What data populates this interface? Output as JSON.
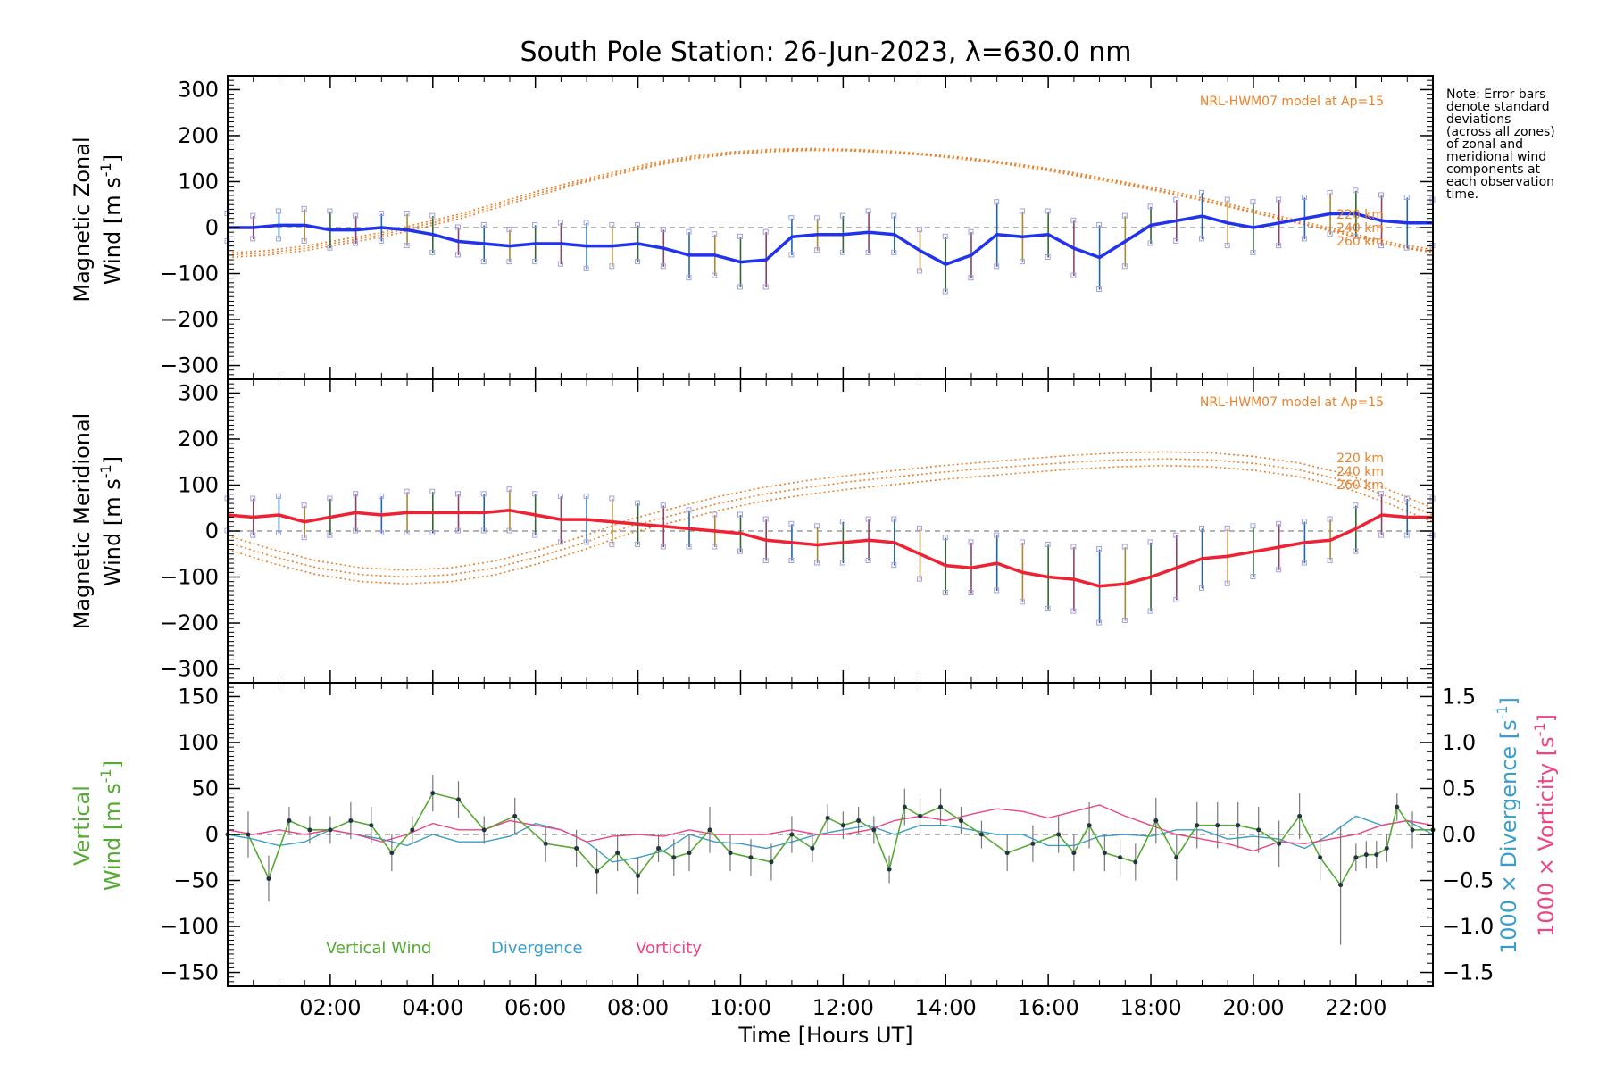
{
  "colors": {
    "zonal": "#2233ee",
    "meridional": "#ee2233",
    "model": "#e8822a",
    "vertical": "#55aa33",
    "divergence": "#3a9ec8",
    "vorticity": "#ee4488",
    "grid": "#888888"
  },
  "chart_data": [
    {
      "id": "zonal",
      "type": "line",
      "title": "South Pole Station: 26-Jun-2023, λ=630.0 nm",
      "ylabel_line1": "Magnetic Zonal",
      "ylabel_line2": "Wind [m s",
      "ylabel_sup": "-1",
      "ylabel_close": "]",
      "ylim": [
        -330,
        330
      ],
      "yticks": [
        300,
        200,
        100,
        0,
        -100,
        -200,
        -300
      ],
      "ytick_labels": [
        "300",
        "200",
        "100",
        "0",
        "−100",
        "−200",
        "−300"
      ],
      "xlim": [
        0.0,
        23.5
      ],
      "model_label": "NRL-HWM07 model at Ap=15",
      "model_altitudes": [
        "220 km",
        "240 km",
        "260 km"
      ],
      "x": [
        0.0,
        0.5,
        1.0,
        1.5,
        2.0,
        2.5,
        3.0,
        3.5,
        4.0,
        4.5,
        5.0,
        5.5,
        6.0,
        6.5,
        7.0,
        7.5,
        8.0,
        8.5,
        9.0,
        9.5,
        10.0,
        10.5,
        11.0,
        11.5,
        12.0,
        12.5,
        13.0,
        13.5,
        14.0,
        14.5,
        15.0,
        15.5,
        16.0,
        16.5,
        17.0,
        17.5,
        18.0,
        18.5,
        19.0,
        19.5,
        20.0,
        20.5,
        21.0,
        21.5,
        22.0,
        22.5,
        23.0,
        23.5
      ],
      "values": [
        0,
        0,
        5,
        5,
        -5,
        -5,
        0,
        -5,
        -15,
        -30,
        -35,
        -40,
        -35,
        -35,
        -40,
        -40,
        -35,
        -45,
        -60,
        -60,
        -75,
        -70,
        -20,
        -15,
        -15,
        -10,
        -15,
        -50,
        -80,
        -60,
        -15,
        -20,
        -15,
        -45,
        -65,
        -30,
        5,
        15,
        25,
        10,
        0,
        10,
        20,
        30,
        30,
        15,
        10,
        10
      ],
      "errors": [
        30,
        25,
        30,
        35,
        40,
        30,
        30,
        35,
        40,
        30,
        40,
        35,
        40,
        45,
        50,
        45,
        40,
        40,
        50,
        45,
        55,
        60,
        40,
        35,
        40,
        45,
        40,
        45,
        60,
        50,
        70,
        55,
        50,
        60,
        70,
        55,
        40,
        45,
        50,
        50,
        55,
        50,
        45,
        45,
        50,
        55,
        55,
        50
      ],
      "model": [
        {
          "name": "220 km",
          "values": [
            -65,
            -60,
            -50,
            -35,
            -20,
            0,
            20,
            45,
            70,
            95,
            115,
            135,
            150,
            160,
            165,
            168,
            167,
            163,
            157,
            148,
            138,
            125,
            110,
            95,
            78,
            60,
            40,
            20,
            0,
            -20,
            -40,
            -55
          ]
        },
        {
          "name": "240 km",
          "values": [
            -60,
            -55,
            -45,
            -30,
            -15,
            5,
            25,
            50,
            75,
            98,
            118,
            138,
            153,
            162,
            167,
            170,
            168,
            165,
            158,
            150,
            140,
            128,
            113,
            98,
            80,
            62,
            42,
            22,
            2,
            -18,
            -38,
            -52
          ]
        },
        {
          "name": "260 km",
          "values": [
            -55,
            -50,
            -40,
            -25,
            -10,
            10,
            30,
            55,
            80,
            102,
            122,
            142,
            156,
            165,
            170,
            172,
            170,
            167,
            160,
            152,
            142,
            130,
            116,
            100,
            84,
            66,
            46,
            26,
            6,
            -14,
            -34,
            -48
          ]
        }
      ]
    },
    {
      "id": "meridional",
      "type": "line",
      "ylabel_line1": "Magnetic Meridional",
      "ylabel_line2": "Wind [m s",
      "ylabel_sup": "-1",
      "ylabel_close": "]",
      "ylim": [
        -330,
        330
      ],
      "yticks": [
        300,
        200,
        100,
        0,
        -100,
        -200,
        -300
      ],
      "ytick_labels": [
        "300",
        "200",
        "100",
        "0",
        "−100",
        "−200",
        "−300"
      ],
      "xlim": [
        0.0,
        23.5
      ],
      "model_label": "NRL-HWM07 model at Ap=15",
      "model_altitudes": [
        "220 km",
        "240 km",
        "260 km"
      ],
      "x": [
        0.0,
        0.5,
        1.0,
        1.5,
        2.0,
        2.5,
        3.0,
        3.5,
        4.0,
        4.5,
        5.0,
        5.5,
        6.0,
        6.5,
        7.0,
        7.5,
        8.0,
        8.5,
        9.0,
        9.5,
        10.0,
        10.5,
        11.0,
        11.5,
        12.0,
        12.5,
        13.0,
        13.5,
        14.0,
        14.5,
        15.0,
        15.5,
        16.0,
        16.5,
        17.0,
        17.5,
        18.0,
        18.5,
        19.0,
        19.5,
        20.0,
        20.5,
        21.0,
        21.5,
        22.0,
        22.5,
        23.0,
        23.5
      ],
      "values": [
        35,
        30,
        35,
        20,
        30,
        40,
        35,
        40,
        40,
        40,
        40,
        45,
        35,
        25,
        25,
        20,
        15,
        10,
        5,
        0,
        -5,
        -20,
        -25,
        -30,
        -25,
        -20,
        -25,
        -50,
        -75,
        -80,
        -70,
        -90,
        -100,
        -105,
        -120,
        -115,
        -100,
        -80,
        -60,
        -55,
        -45,
        -35,
        -25,
        -20,
        5,
        35,
        30,
        30
      ],
      "errors": [
        35,
        40,
        40,
        35,
        40,
        40,
        40,
        45,
        45,
        40,
        40,
        45,
        45,
        50,
        50,
        50,
        45,
        45,
        40,
        35,
        40,
        45,
        40,
        40,
        45,
        45,
        50,
        55,
        60,
        55,
        60,
        65,
        70,
        70,
        80,
        80,
        75,
        70,
        65,
        60,
        55,
        50,
        45,
        45,
        50,
        45,
        40,
        40
      ],
      "model": [
        {
          "name": "220 km",
          "values": [
            -40,
            -70,
            -95,
            -110,
            -115,
            -110,
            -95,
            -70,
            -40,
            -5,
            20,
            45,
            65,
            80,
            92,
            102,
            112,
            120,
            128,
            135,
            140,
            142,
            140,
            132,
            118,
            95,
            60,
            20
          ]
        },
        {
          "name": "240 km",
          "values": [
            -25,
            -55,
            -80,
            -95,
            -100,
            -95,
            -80,
            -55,
            -25,
            10,
            35,
            60,
            80,
            95,
            108,
            118,
            128,
            136,
            143,
            150,
            155,
            157,
            155,
            147,
            133,
            110,
            75,
            35
          ]
        },
        {
          "name": "260 km",
          "values": [
            -10,
            -40,
            -65,
            -80,
            -85,
            -80,
            -65,
            -40,
            -10,
            25,
            50,
            75,
            95,
            110,
            122,
            132,
            142,
            150,
            158,
            165,
            170,
            172,
            170,
            162,
            148,
            125,
            90,
            50
          ]
        }
      ]
    },
    {
      "id": "vertical",
      "type": "line",
      "ylabel_line1": "Vertical",
      "ylabel_line2": "Wind [m s",
      "ylabel_sup": "-1",
      "ylabel_close": "]",
      "ylim": [
        -165,
        165
      ],
      "yticks": [
        150,
        100,
        50,
        0,
        -50,
        -100,
        -150
      ],
      "ytick_labels": [
        "150",
        "100",
        "50",
        "0",
        "−50",
        "−100",
        "−150"
      ],
      "y2lim": [
        -1.65,
        1.65
      ],
      "y2ticks": [
        1.5,
        1.0,
        0.5,
        0.0,
        -0.5,
        -1.0,
        -1.5
      ],
      "y2tick_labels": [
        "1.5",
        "1.0",
        "0.5",
        "0.0",
        "−0.5",
        "−1.0",
        "−1.5"
      ],
      "y2label_div": "1000 × Divergence [s",
      "y2label_vor": "1000 × Vorticity [s",
      "y2label_sup": "-1",
      "y2label_close": "]",
      "xlim": [
        0.0,
        23.5
      ],
      "xticks": [
        2,
        4,
        6,
        8,
        10,
        12,
        14,
        16,
        18,
        20,
        22
      ],
      "xtick_labels": [
        "02:00",
        "04:00",
        "06:00",
        "08:00",
        "10:00",
        "12:00",
        "14:00",
        "16:00",
        "18:00",
        "20:00",
        "22:00"
      ],
      "xlabel": "Time [Hours UT]",
      "legend": [
        "Vertical Wind",
        "Divergence",
        "Vorticity"
      ],
      "series": [
        {
          "name": "Vertical Wind",
          "x": [
            0.0,
            0.4,
            0.8,
            1.2,
            1.6,
            2.0,
            2.4,
            2.8,
            3.2,
            3.6,
            4.0,
            4.5,
            5.0,
            5.6,
            6.2,
            6.8,
            7.2,
            7.6,
            8.0,
            8.4,
            8.7,
            9.0,
            9.4,
            9.8,
            10.2,
            10.6,
            11.0,
            11.4,
            11.7,
            12.0,
            12.3,
            12.6,
            12.9,
            13.2,
            13.5,
            13.9,
            14.3,
            14.7,
            15.2,
            15.7,
            16.2,
            16.5,
            16.8,
            17.1,
            17.4,
            17.7,
            18.1,
            18.5,
            18.9,
            19.3,
            19.7,
            20.1,
            20.5,
            20.9,
            21.3,
            21.7,
            22.0,
            22.2,
            22.4,
            22.6,
            22.8,
            23.1,
            23.5
          ],
          "values": [
            0,
            0,
            -48,
            15,
            5,
            5,
            15,
            10,
            -20,
            5,
            45,
            38,
            5,
            20,
            -10,
            -15,
            -40,
            -20,
            -45,
            -15,
            -25,
            -20,
            5,
            -20,
            -25,
            -30,
            0,
            -15,
            18,
            10,
            15,
            5,
            -38,
            30,
            20,
            30,
            15,
            0,
            -20,
            -10,
            0,
            -20,
            10,
            -20,
            -25,
            -30,
            15,
            -25,
            10,
            10,
            10,
            5,
            -10,
            20,
            -25,
            -55,
            -25,
            -22,
            -22,
            -15,
            30,
            5,
            5
          ],
          "errors": [
            20,
            25,
            25,
            15,
            15,
            15,
            20,
            20,
            20,
            15,
            20,
            20,
            15,
            20,
            20,
            20,
            25,
            20,
            20,
            15,
            20,
            20,
            25,
            20,
            20,
            20,
            20,
            15,
            15,
            15,
            15,
            15,
            15,
            20,
            20,
            20,
            15,
            15,
            20,
            20,
            20,
            20,
            25,
            20,
            20,
            20,
            25,
            25,
            25,
            25,
            25,
            25,
            25,
            25,
            25,
            65,
            15,
            15,
            15,
            15,
            15,
            20,
            20
          ]
        },
        {
          "name": "Divergence",
          "x": [
            0.0,
            0.5,
            1.0,
            1.5,
            2.0,
            2.5,
            3.0,
            3.5,
            4.0,
            4.5,
            5.0,
            5.5,
            6.0,
            6.5,
            7.0,
            7.5,
            8.0,
            8.5,
            9.0,
            9.5,
            10.0,
            10.5,
            11.0,
            11.5,
            12.0,
            12.5,
            13.0,
            13.5,
            14.0,
            14.5,
            15.0,
            15.5,
            16.0,
            16.5,
            17.0,
            17.5,
            18.0,
            18.5,
            19.0,
            19.5,
            20.0,
            20.5,
            21.0,
            21.5,
            22.0,
            22.5,
            23.0,
            23.5
          ],
          "values": [
            0.0,
            -0.05,
            -0.12,
            -0.08,
            0.05,
            0.0,
            -0.05,
            -0.12,
            0.0,
            -0.08,
            -0.08,
            -0.02,
            0.12,
            0.05,
            -0.08,
            -0.3,
            -0.25,
            -0.18,
            0.0,
            -0.08,
            -0.1,
            -0.15,
            -0.08,
            0.0,
            0.05,
            0.1,
            0.0,
            0.1,
            0.1,
            0.05,
            0.0,
            0.0,
            -0.12,
            -0.12,
            -0.02,
            0.0,
            -0.02,
            0.05,
            0.05,
            -0.05,
            -0.02,
            -0.05,
            -0.15,
            0.0,
            0.2,
            0.1,
            0.15,
            0.0
          ]
        },
        {
          "name": "Vorticity",
          "x": [
            0.0,
            0.5,
            1.0,
            1.5,
            2.0,
            2.5,
            3.0,
            3.5,
            4.0,
            4.5,
            5.0,
            5.5,
            6.0,
            6.5,
            7.0,
            7.5,
            8.0,
            8.5,
            9.0,
            9.5,
            10.0,
            10.5,
            11.0,
            11.5,
            12.0,
            12.5,
            13.0,
            13.5,
            14.0,
            14.5,
            15.0,
            15.5,
            16.0,
            16.5,
            17.0,
            17.5,
            18.0,
            18.5,
            19.0,
            19.5,
            20.0,
            20.5,
            21.0,
            21.5,
            22.0,
            22.5,
            23.0,
            23.5
          ],
          "values": [
            0.05,
            0.0,
            0.05,
            0.0,
            0.05,
            0.0,
            -0.08,
            0.0,
            0.12,
            0.05,
            0.05,
            0.15,
            0.1,
            0.05,
            -0.08,
            -0.02,
            0.0,
            -0.02,
            0.05,
            0.0,
            0.0,
            0.0,
            0.05,
            0.0,
            0.0,
            0.05,
            0.15,
            0.2,
            0.15,
            0.22,
            0.28,
            0.25,
            0.18,
            0.25,
            0.32,
            0.2,
            0.1,
            0.0,
            -0.05,
            -0.1,
            -0.18,
            -0.08,
            -0.1,
            -0.05,
            0.0,
            0.1,
            0.15,
            0.1
          ]
        }
      ]
    }
  ],
  "note": {
    "lines": [
      "Note: Error bars",
      "denote standard",
      "deviations",
      "(across all zones)",
      "of zonal and",
      "meridional wind",
      "components at",
      "each observation",
      "time."
    ]
  }
}
